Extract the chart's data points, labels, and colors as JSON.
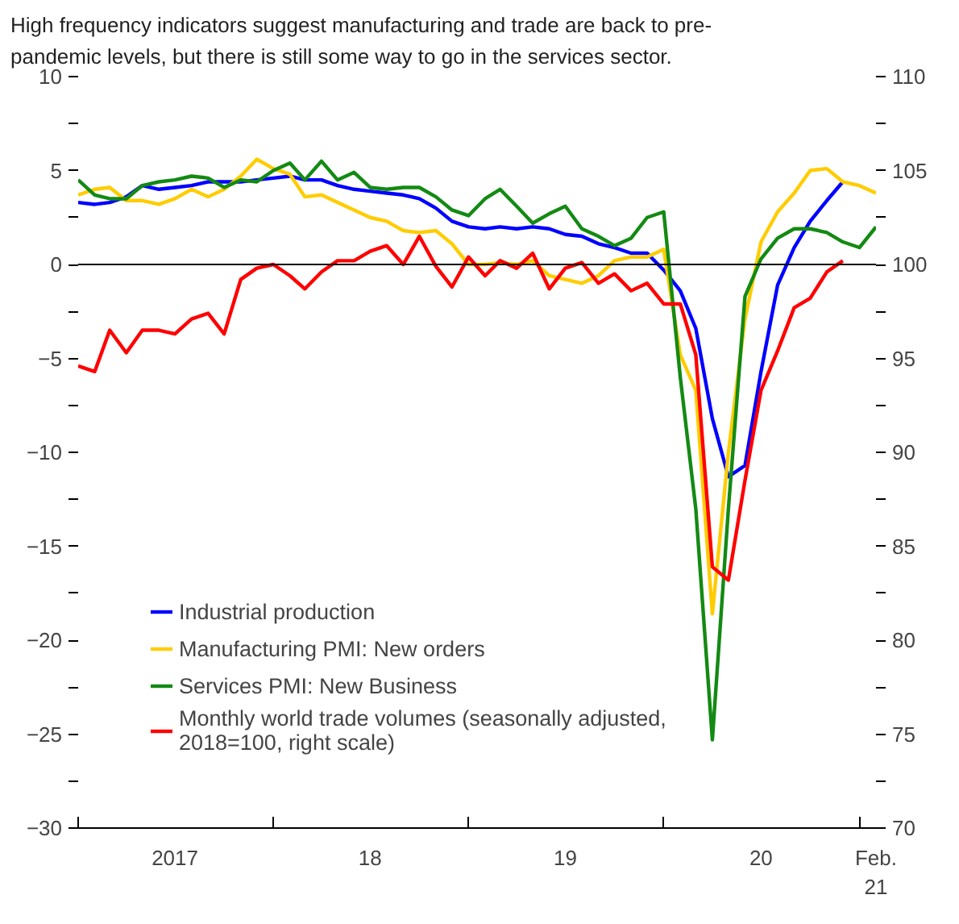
{
  "chart_data": {
    "type": "line",
    "title": "High frequency indicators suggest manufacturing and trade are back to pre-pandemic levels, but there is still some way to go in the services sector.",
    "x": [
      "2017-01",
      "2017-02",
      "2017-03",
      "2017-04",
      "2017-05",
      "2017-06",
      "2017-07",
      "2017-08",
      "2017-09",
      "2017-10",
      "2017-11",
      "2017-12",
      "2018-01",
      "2018-02",
      "2018-03",
      "2018-04",
      "2018-05",
      "2018-06",
      "2018-07",
      "2018-08",
      "2018-09",
      "2018-10",
      "2018-11",
      "2018-12",
      "2019-01",
      "2019-02",
      "2019-03",
      "2019-04",
      "2019-05",
      "2019-06",
      "2019-07",
      "2019-08",
      "2019-09",
      "2019-10",
      "2019-11",
      "2019-12",
      "2020-01",
      "2020-02",
      "2020-03",
      "2020-04",
      "2020-05",
      "2020-06",
      "2020-07",
      "2020-08",
      "2020-09",
      "2020-10",
      "2020-11",
      "2020-12",
      "2021-01",
      "2021-02"
    ],
    "series": [
      {
        "name": "Industrial production",
        "color": "#0000ff",
        "values": [
          3.3,
          3.2,
          3.3,
          3.6,
          4.2,
          4.0,
          4.1,
          4.2,
          4.4,
          4.4,
          4.4,
          4.5,
          4.6,
          4.7,
          4.5,
          4.5,
          4.2,
          4.0,
          3.9,
          3.8,
          3.7,
          3.5,
          3.0,
          2.3,
          2.0,
          1.9,
          2.0,
          1.9,
          2.0,
          1.9,
          1.6,
          1.5,
          1.1,
          0.9,
          0.6,
          0.6,
          -0.3,
          -1.4,
          -3.4,
          -8.2,
          -11.3,
          -10.7,
          -5.7,
          -1.1,
          0.9,
          2.3,
          3.4,
          4.4,
          null,
          null
        ]
      },
      {
        "name": "Manufacturing PMI: New orders",
        "color": "#ffcc00",
        "values": [
          3.7,
          4.0,
          4.1,
          3.4,
          3.4,
          3.2,
          3.5,
          4.0,
          3.6,
          4.0,
          4.7,
          5.6,
          5.1,
          4.8,
          3.6,
          3.7,
          3.3,
          2.9,
          2.5,
          2.3,
          1.8,
          1.7,
          1.8,
          1.1,
          0.0,
          0.0,
          0.1,
          0.0,
          0.2,
          -0.6,
          -0.8,
          -1.0,
          -0.6,
          0.2,
          0.4,
          0.4,
          0.8,
          -4.8,
          -6.7,
          -18.6,
          -10,
          -2.9,
          1.2,
          2.8,
          3.8,
          5.0,
          5.1,
          4.4,
          4.2,
          3.8
        ]
      },
      {
        "name": "Services PMI: New Business",
        "color": "#138a13",
        "values": [
          4.5,
          3.7,
          3.5,
          3.5,
          4.2,
          4.4,
          4.5,
          4.7,
          4.6,
          4.1,
          4.5,
          4.4,
          5.0,
          5.4,
          4.5,
          5.5,
          4.5,
          4.9,
          4.1,
          4.0,
          4.1,
          4.1,
          3.6,
          2.9,
          2.6,
          3.5,
          4.0,
          3.1,
          2.2,
          2.7,
          3.1,
          1.9,
          1.5,
          1.0,
          1.4,
          2.5,
          2.8,
          -6,
          -13,
          -25.3,
          -13,
          -1.7,
          0.3,
          1.4,
          1.9,
          1.9,
          1.7,
          1.2,
          0.9,
          2.0
        ]
      },
      {
        "name": "Monthly world trade volumes (seasonally adjusted, 2018=100, right scale)",
        "color": "#ff0000",
        "axis": "y2",
        "values": [
          94.6,
          94.3,
          96.5,
          95.3,
          96.5,
          96.5,
          96.3,
          97.1,
          97.4,
          96.3,
          99.2,
          99.8,
          100.0,
          99.4,
          98.7,
          99.6,
          100.2,
          100.2,
          100.7,
          101.0,
          100.0,
          101.5,
          99.9,
          98.8,
          100.4,
          99.4,
          100.2,
          99.8,
          100.6,
          98.7,
          99.8,
          100.1,
          99.0,
          99.5,
          98.6,
          99.0,
          97.9,
          97.9,
          95.2,
          83.9,
          83.2,
          88.5,
          93.3,
          95.4,
          97.7,
          98.2,
          99.6,
          100.2,
          null,
          null
        ]
      }
    ],
    "xlim": [
      "2017-01",
      "2021-02"
    ],
    "xticks": [
      {
        "value": "2017-01",
        "label": null
      },
      {
        "value": "2017-07",
        "label": "2017"
      },
      {
        "value": "2018-01",
        "label": null
      },
      {
        "value": "2018-07",
        "label": "18"
      },
      {
        "value": "2019-01",
        "label": null
      },
      {
        "value": "2019-07",
        "label": "19"
      },
      {
        "value": "2020-01",
        "label": null
      },
      {
        "value": "2020-07",
        "label": "20"
      },
      {
        "value": "2021-01",
        "label": null
      },
      {
        "value": "2021-02",
        "label": "Feb.\n21"
      }
    ],
    "ylim": [
      -30,
      10
    ],
    "yticks": [
      -30,
      {
        "value": -27.5,
        "label": null
      },
      -25,
      {
        "value": -22.5,
        "label": null
      },
      -20,
      {
        "value": -17.5,
        "label": null
      },
      -15,
      {
        "value": -12.5,
        "label": null
      },
      -10,
      {
        "value": -7.5,
        "label": null
      },
      -5,
      {
        "value": -2.5,
        "label": null
      },
      0,
      {
        "value": 2.5,
        "label": null
      },
      5,
      {
        "value": 7.5,
        "label": null
      },
      10
    ],
    "y2lim": [
      70,
      110
    ],
    "y2ticks": [
      70,
      {
        "value": 72.5,
        "label": null
      },
      75,
      {
        "value": 77.5,
        "label": null
      },
      80,
      {
        "value": 82.5,
        "label": null
      },
      85,
      {
        "value": 87.5,
        "label": null
      },
      90,
      {
        "value": 92.5,
        "label": null
      },
      95,
      {
        "value": 97.5,
        "label": null
      },
      100,
      {
        "value": 102.5,
        "label": null
      },
      105,
      {
        "value": 107.5,
        "label": null
      },
      110
    ],
    "ref_lines": [
      {
        "axis": "y",
        "value": 0,
        "color": "#000000"
      }
    ],
    "grid": false,
    "legend": "bottom left",
    "line_style": "solid"
  }
}
